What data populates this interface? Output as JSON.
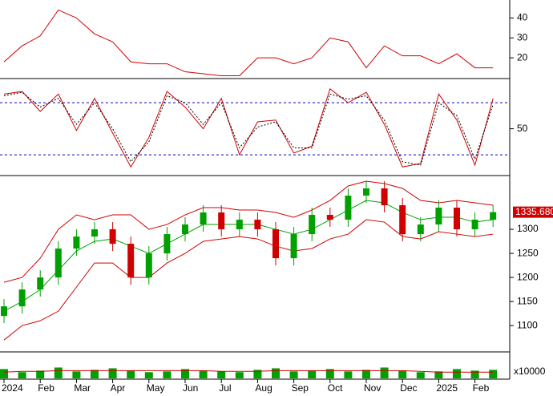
{
  "chart_data": [
    {
      "type": "line",
      "ylim": [
        10,
        49
      ],
      "yticks": [
        20,
        30,
        40
      ],
      "series": [
        {
          "color": "#d00000",
          "values": [
            18,
            26,
            31,
            44,
            40,
            32,
            28,
            18,
            17,
            17,
            13,
            12,
            11,
            11,
            20,
            20,
            17,
            20,
            30,
            28,
            15,
            26,
            21,
            21,
            17,
            22,
            15,
            15
          ]
        }
      ]
    },
    {
      "type": "line",
      "ylim": [
        -3,
        106
      ],
      "yticks": [
        50
      ],
      "levels": [
        80,
        20
      ],
      "level_color": "#0000c0",
      "series": [
        {
          "color": "#d00000",
          "dash": false,
          "values": [
            90,
            93,
            70,
            90,
            48,
            85,
            45,
            6,
            40,
            93,
            75,
            50,
            85,
            20,
            58,
            60,
            22,
            30,
            96,
            80,
            92,
            55,
            6,
            10,
            90,
            60,
            8,
            85
          ]
        },
        {
          "color": "#000000",
          "dash": true,
          "values": [
            88,
            92,
            75,
            85,
            55,
            80,
            50,
            12,
            35,
            88,
            80,
            55,
            80,
            28,
            52,
            58,
            28,
            28,
            90,
            84,
            88,
            60,
            12,
            8,
            80,
            65,
            15,
            78
          ]
        }
      ]
    },
    {
      "type": "candlestick",
      "ylim": [
        1047,
        1410
      ],
      "yticks": [
        1100,
        1150,
        1200,
        1250,
        1300
      ],
      "up_color": "#00a000",
      "down_color": "#d00000",
      "last_label": "1335.680",
      "open": [
        1120,
        1140,
        1175,
        1200,
        1260,
        1285,
        1300,
        1270,
        1200,
        1250,
        1290,
        1310,
        1335,
        1300,
        1320,
        1300,
        1240,
        1290,
        1330,
        1320,
        1370,
        1385,
        1350,
        1290,
        1310,
        1345,
        1300,
        1320
      ],
      "high": [
        1155,
        1190,
        1215,
        1275,
        1300,
        1315,
        1315,
        1285,
        1265,
        1305,
        1325,
        1350,
        1350,
        1335,
        1335,
        1315,
        1305,
        1345,
        1345,
        1385,
        1400,
        1400,
        1365,
        1325,
        1360,
        1360,
        1335,
        1350
      ],
      "low": [
        1105,
        1125,
        1160,
        1185,
        1245,
        1270,
        1255,
        1185,
        1185,
        1235,
        1275,
        1295,
        1285,
        1285,
        1285,
        1225,
        1225,
        1275,
        1305,
        1305,
        1355,
        1335,
        1275,
        1275,
        1295,
        1285,
        1285,
        1305
      ],
      "close": [
        1140,
        1175,
        1200,
        1260,
        1285,
        1300,
        1270,
        1200,
        1250,
        1290,
        1310,
        1335,
        1300,
        1320,
        1300,
        1240,
        1290,
        1330,
        1320,
        1370,
        1385,
        1350,
        1290,
        1310,
        1345,
        1300,
        1320,
        1335.68
      ],
      "bands": [
        {
          "color": "#d00000",
          "values": [
            1190,
            1200,
            1240,
            1300,
            1330,
            1320,
            1330,
            1330,
            1300,
            1310,
            1330,
            1345,
            1345,
            1340,
            1340,
            1335,
            1325,
            1340,
            1360,
            1390,
            1400,
            1395,
            1385,
            1360,
            1355,
            1360,
            1355,
            1350
          ]
        },
        {
          "color": "#00a000",
          "values": [
            1130,
            1150,
            1175,
            1215,
            1255,
            1275,
            1280,
            1265,
            1250,
            1270,
            1290,
            1310,
            1310,
            1310,
            1310,
            1300,
            1290,
            1300,
            1320,
            1340,
            1360,
            1355,
            1335,
            1320,
            1325,
            1325,
            1315,
            1320
          ]
        },
        {
          "color": "#d00000",
          "values": [
            1070,
            1100,
            1110,
            1130,
            1180,
            1230,
            1230,
            1200,
            1200,
            1230,
            1250,
            1275,
            1280,
            1285,
            1280,
            1265,
            1255,
            1260,
            1280,
            1290,
            1320,
            1315,
            1285,
            1280,
            1295,
            1290,
            1285,
            1290
          ]
        }
      ]
    },
    {
      "type": "bar",
      "ylim": [
        0,
        30
      ],
      "ylabel": "x10000",
      "color": "#00a000",
      "categories": [
        "2024",
        null,
        "Feb",
        null,
        "Mar",
        null,
        "Apr",
        null,
        "May",
        null,
        "Jun",
        null,
        "Jul",
        null,
        "Aug",
        null,
        "Sep",
        null,
        "Oct",
        null,
        "Nov",
        null,
        "Dec",
        null,
        "2025",
        null,
        "Feb",
        null
      ],
      "values": [
        12,
        8,
        10,
        14,
        9,
        11,
        13,
        10,
        8,
        9,
        12,
        10,
        9,
        8,
        11,
        13,
        9,
        10,
        12,
        9,
        11,
        14,
        10,
        8,
        9,
        12,
        10,
        11
      ],
      "ma": {
        "color": "#d00000",
        "values": [
          8,
          9,
          9,
          10,
          10,
          10,
          10,
          10,
          10,
          10,
          10,
          10,
          9,
          9,
          9,
          10,
          10,
          10,
          10,
          10,
          10,
          10,
          10,
          9,
          8,
          8,
          8,
          8
        ]
      }
    }
  ]
}
